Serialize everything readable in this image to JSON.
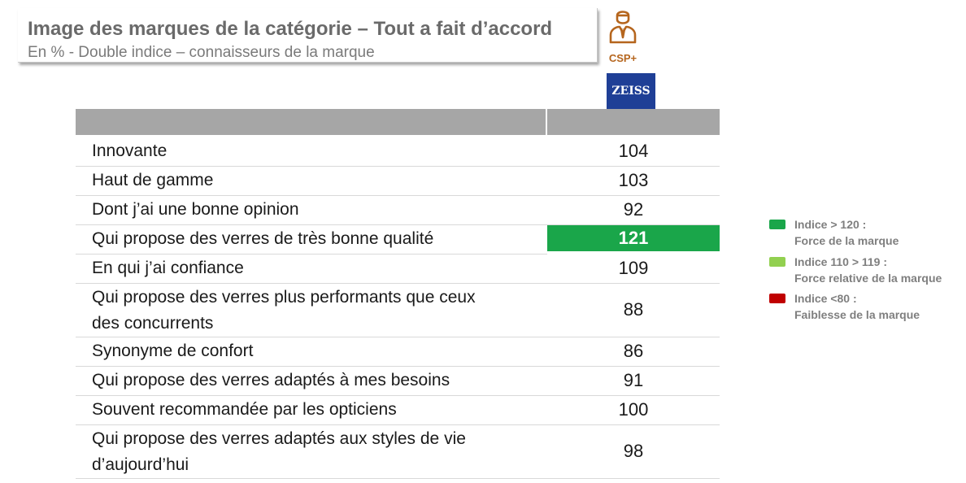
{
  "header": {
    "title": "Image des marques de la catégorie – Tout a fait d’accord",
    "subtitle": "En % - Double indice – connaisseurs de la marque"
  },
  "segment": {
    "label": "CSP+",
    "icon": "person-icon",
    "color": "#b5651d"
  },
  "brand": {
    "logo_text": "ZEISS",
    "color": "#1f3f96"
  },
  "colors": {
    "header_bar": "#a6a6a6",
    "strong": "#1aa64a",
    "relative": "#92d050",
    "weak": "#c00000"
  },
  "chart_data": {
    "type": "table",
    "title": "Image des marques de la catégorie – Tout a fait d’accord",
    "column": "ZEISS",
    "categories": [
      [
        "Innovante"
      ],
      [
        "Haut de gamme"
      ],
      [
        "Dont j’ai une bonne opinion"
      ],
      [
        "Qui propose des verres de très bonne qualité"
      ],
      [
        "En qui j’ai confiance"
      ],
      [
        "Qui propose des verres plus performants que ceux",
        "des concurrents"
      ],
      [
        "Synonyme de confort"
      ],
      [
        "Qui propose des verres adaptés à mes besoins"
      ],
      [
        "Souvent recommandée par les opticiens"
      ],
      [
        "Qui propose des verres adaptés aux styles de vie",
        "d’aujourd’hui"
      ]
    ],
    "values": [
      104,
      103,
      92,
      121,
      109,
      88,
      86,
      91,
      100,
      98
    ],
    "highlight": [
      false,
      false,
      false,
      true,
      false,
      false,
      false,
      false,
      false,
      false
    ]
  },
  "legend": [
    {
      "line1": "Indice > 120 :",
      "line2": "Force de la marque",
      "color": "#1aa64a"
    },
    {
      "line1": "Indice 110 > 119 :",
      "line2": "Force relative de la marque",
      "color": "#92d050"
    },
    {
      "line1": "Indice <80 :",
      "line2": "Faiblesse de la marque",
      "color": "#c00000"
    }
  ]
}
